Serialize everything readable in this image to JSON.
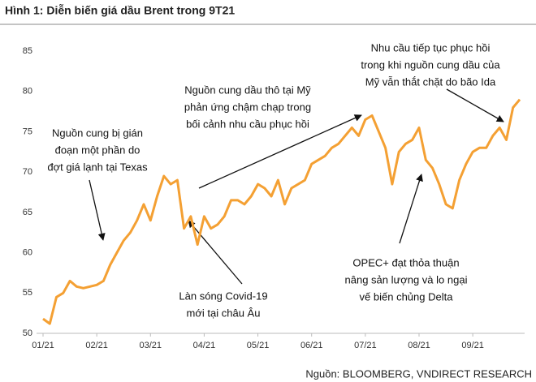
{
  "chart_data": {
    "type": "line",
    "title": "Hình 1: Diễn biến giá dầu Brent trong 9T21",
    "source": "Nguồn: BLOOMBERG, VNDIRECT RESEARCH",
    "categories": [
      "01/21",
      null,
      null,
      null,
      null,
      null,
      null,
      null,
      "02/21",
      null,
      null,
      null,
      null,
      null,
      null,
      null,
      "03/21",
      null,
      null,
      null,
      null,
      null,
      null,
      null,
      "04/21",
      null,
      null,
      null,
      null,
      null,
      null,
      null,
      "05/21",
      null,
      null,
      null,
      null,
      null,
      null,
      null,
      "06/21",
      null,
      null,
      null,
      null,
      null,
      null,
      null,
      "07/21",
      null,
      null,
      null,
      null,
      null,
      null,
      null,
      "08/21",
      null,
      null,
      null,
      null,
      null,
      null,
      null,
      "09/21",
      null,
      null,
      null,
      null,
      null,
      null,
      null
    ],
    "series": [
      {
        "name": "Brent",
        "color": "#f4a033",
        "values": [
          51.8,
          51.2,
          54.5,
          55.0,
          56.5,
          55.8,
          55.6,
          55.8,
          56.0,
          56.5,
          58.5,
          60.0,
          61.5,
          62.5,
          64.0,
          66.0,
          64.0,
          67.0,
          69.5,
          68.5,
          69.0,
          63.0,
          64.5,
          61.0,
          64.5,
          63.0,
          63.5,
          64.5,
          66.5,
          66.5,
          66.0,
          67.0,
          68.5,
          68.0,
          67.0,
          69.0,
          66.0,
          68.0,
          68.5,
          69.0,
          71.0,
          71.5,
          72.0,
          73.0,
          73.5,
          74.5,
          75.5,
          74.5,
          76.5,
          77.0,
          75.0,
          73.0,
          68.5,
          72.5,
          73.5,
          74.0,
          75.5,
          71.5,
          70.5,
          68.5,
          66.0,
          65.5,
          69.0,
          71.0,
          72.5,
          73.0,
          73.0,
          74.5,
          75.5,
          74.0,
          78.0,
          79.0
        ]
      }
    ],
    "ylim": [
      50,
      85
    ],
    "yticks": [
      50,
      55,
      60,
      65,
      70,
      75,
      80,
      85
    ],
    "grid": false,
    "annotations": [
      [
        "Nguồn cung bị gián",
        "đoạn một phần do",
        "đợt giá lạnh tại Texas"
      ],
      [
        "Nguồn cung dầu thô tại Mỹ",
        "phản ứng chậm chạp trong",
        "bối cảnh nhu cầu phục hồi"
      ],
      [
        "Nhu cầu tiếp tục phục hồi",
        "trong khi nguồn cung dầu của",
        "Mỹ vẫn thắt chặt do bão Ida"
      ],
      [
        "OPEC+ đạt thỏa thuận",
        "nâng sản lượng và lo ngại",
        "vế biến chủng Delta"
      ],
      [
        "Làn sóng Covid-19",
        "mới tại châu Âu"
      ]
    ]
  }
}
